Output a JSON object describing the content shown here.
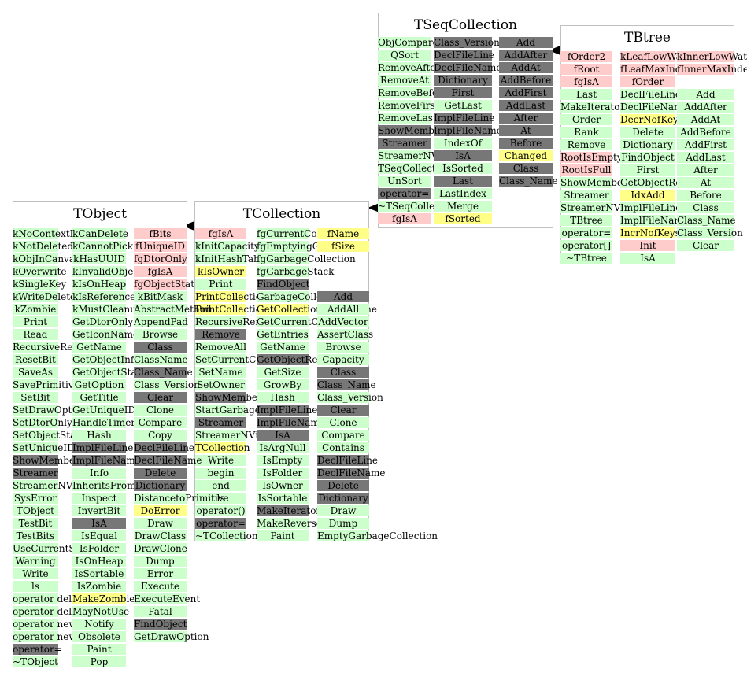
{
  "classes": [
    {
      "id": "tseqcollection",
      "name": "TSeqCollection",
      "columns": [
        [
          [
            "ObjCompare",
            "g"
          ],
          [
            "QSort",
            "g"
          ],
          [
            "RemoveAfter",
            "g"
          ],
          [
            "RemoveAt",
            "g"
          ],
          [
            "RemoveBefore",
            "g"
          ],
          [
            "RemoveFirst",
            "g"
          ],
          [
            "RemoveLast",
            "g"
          ],
          [
            "ShowMembers",
            "d"
          ],
          [
            "Streamer",
            "d"
          ],
          [
            "StreamerNVirtual",
            "g"
          ],
          [
            "TSeqCollection",
            "g"
          ],
          [
            "UnSort",
            "g"
          ],
          [
            "operator=",
            "d"
          ],
          [
            "~TSeqCollection",
            "g"
          ],
          [
            "fgIsA",
            "p"
          ]
        ],
        [
          [
            "Class_Version",
            "d"
          ],
          [
            "DeclFileLine",
            "d"
          ],
          [
            "DeclFileName",
            "d"
          ],
          [
            "Dictionary",
            "d"
          ],
          [
            "First",
            "d"
          ],
          [
            "GetLast",
            "g"
          ],
          [
            "ImplFileLine",
            "d"
          ],
          [
            "ImplFileName",
            "d"
          ],
          [
            "IndexOf",
            "g"
          ],
          [
            "IsA",
            "d"
          ],
          [
            "IsSorted",
            "g"
          ],
          [
            "Last",
            "d"
          ],
          [
            "LastIndex",
            "g"
          ],
          [
            "Merge",
            "g"
          ],
          [
            "fSorted",
            "y"
          ]
        ],
        [
          [
            "Add",
            "d"
          ],
          [
            "AddAfter",
            "d"
          ],
          [
            "AddAt",
            "d"
          ],
          [
            "AddBefore",
            "d"
          ],
          [
            "AddFirst",
            "d"
          ],
          [
            "AddLast",
            "d"
          ],
          [
            "After",
            "d"
          ],
          [
            "At",
            "d"
          ],
          [
            "Before",
            "d"
          ],
          [
            "Changed",
            "y"
          ],
          [
            "Class",
            "d"
          ],
          [
            "Class_Name",
            "d"
          ]
        ]
      ]
    },
    {
      "id": "tbtree",
      "name": "TBtree",
      "columns": [
        [
          [
            "fOrder2",
            "p"
          ],
          [
            "fRoot",
            "p"
          ],
          [
            "fgIsA",
            "p"
          ],
          [
            "Last",
            "g"
          ],
          [
            "MakeIterator",
            "g"
          ],
          [
            "Order",
            "g"
          ],
          [
            "Rank",
            "g"
          ],
          [
            "Remove",
            "g"
          ],
          [
            "RootIsEmpty",
            "p"
          ],
          [
            "RootIsFull",
            "p"
          ],
          [
            "ShowMembers",
            "g"
          ],
          [
            "Streamer",
            "g"
          ],
          [
            "StreamerNVirtual",
            "g"
          ],
          [
            "TBtree",
            "g"
          ],
          [
            "operator=",
            "g"
          ],
          [
            "operator[]",
            "g"
          ],
          [
            "~TBtree",
            "g"
          ]
        ],
        [
          [
            "kLeafLowWaterMark",
            "p"
          ],
          [
            "fLeafMaxIndex",
            "p"
          ],
          [
            "fOrder",
            "p"
          ],
          [
            "DeclFileLine",
            "g"
          ],
          [
            "DeclFileName",
            "g"
          ],
          [
            "DecrNofKeys",
            "y"
          ],
          [
            "Delete",
            "g"
          ],
          [
            "Dictionary",
            "g"
          ],
          [
            "FindObject",
            "g"
          ],
          [
            "First",
            "g"
          ],
          [
            "GetObjectRef",
            "g"
          ],
          [
            "IdxAdd",
            "y"
          ],
          [
            "ImplFileLine",
            "g"
          ],
          [
            "ImplFileName",
            "g"
          ],
          [
            "IncrNofKeys",
            "y"
          ],
          [
            "Init",
            "p"
          ],
          [
            "IsA",
            "g"
          ]
        ],
        [
          [
            "kInnerLowWaterMark",
            "p"
          ],
          [
            "fInnerMaxIndex",
            "p"
          ],
          [
            "",
            "w"
          ],
          [
            "Add",
            "g"
          ],
          [
            "AddAfter",
            "g"
          ],
          [
            "AddAt",
            "g"
          ],
          [
            "AddBefore",
            "g"
          ],
          [
            "AddFirst",
            "g"
          ],
          [
            "AddLast",
            "g"
          ],
          [
            "After",
            "g"
          ],
          [
            "At",
            "g"
          ],
          [
            "Before",
            "g"
          ],
          [
            "Class",
            "g"
          ],
          [
            "Class_Name",
            "g"
          ],
          [
            "Class_Version",
            "g"
          ],
          [
            "Clear",
            "g"
          ]
        ]
      ]
    },
    {
      "id": "tcollection",
      "name": "TCollection",
      "columns": [
        [
          [
            "fgIsA",
            "p"
          ],
          [
            "kInitCapacity",
            "g"
          ],
          [
            "kInitHashTableCapacity",
            "g"
          ],
          [
            "kIsOwner",
            "y"
          ],
          [
            "Print",
            "g"
          ],
          [
            "PrintCollectionEntry",
            "y"
          ],
          [
            "PrintCollectionHeader",
            "y"
          ],
          [
            "RecursiveRemove",
            "g"
          ],
          [
            "Remove",
            "d"
          ],
          [
            "RemoveAll",
            "g"
          ],
          [
            "SetCurrentCollection",
            "g"
          ],
          [
            "SetName",
            "g"
          ],
          [
            "SetOwner",
            "g"
          ],
          [
            "ShowMembers",
            "d"
          ],
          [
            "StartGarbageCollection",
            "g"
          ],
          [
            "Streamer",
            "d"
          ],
          [
            "StreamerNVirtual",
            "g"
          ],
          [
            "TCollection",
            "y"
          ],
          [
            "Write",
            "g"
          ],
          [
            "begin",
            "g"
          ],
          [
            "end",
            "g"
          ],
          [
            "ls",
            "g"
          ],
          [
            "operator()",
            "g"
          ],
          [
            "operator=",
            "d"
          ],
          [
            "~TCollection",
            "g"
          ]
        ],
        [
          [
            "fgCurrentCollection",
            "g"
          ],
          [
            "fgEmptyingGarbage",
            "g"
          ],
          [
            "fgGarbageCollection",
            "g"
          ],
          [
            "fgGarbageStack",
            "g"
          ],
          [
            "FindObject",
            "d"
          ],
          [
            "GarbageCollect",
            "g"
          ],
          [
            "GetCollectionEntryName",
            "y"
          ],
          [
            "GetCurrentCollection",
            "g"
          ],
          [
            "GetEntries",
            "g"
          ],
          [
            "GetName",
            "g"
          ],
          [
            "GetObjectRef",
            "d"
          ],
          [
            "GetSize",
            "g"
          ],
          [
            "GrowBy",
            "g"
          ],
          [
            "Hash",
            "g"
          ],
          [
            "ImplFileLine",
            "d"
          ],
          [
            "ImplFileName",
            "d"
          ],
          [
            "IsA",
            "d"
          ],
          [
            "IsArgNull",
            "g"
          ],
          [
            "IsEmpty",
            "g"
          ],
          [
            "IsFolder",
            "g"
          ],
          [
            "IsOwner",
            "g"
          ],
          [
            "IsSortable",
            "g"
          ],
          [
            "MakeIterator",
            "d"
          ],
          [
            "MakeReverseIterator",
            "g"
          ],
          [
            "Paint",
            "g"
          ]
        ],
        [
          [
            "fName",
            "y"
          ],
          [
            "fSize",
            "y"
          ],
          [
            "",
            "w"
          ],
          [
            "",
            "w"
          ],
          [
            "",
            "w"
          ],
          [
            "Add",
            "d"
          ],
          [
            "AddAll",
            "g"
          ],
          [
            "AddVector",
            "g"
          ],
          [
            "AssertClass",
            "g"
          ],
          [
            "Browse",
            "g"
          ],
          [
            "Capacity",
            "g"
          ],
          [
            "Class",
            "d"
          ],
          [
            "Class_Name",
            "d"
          ],
          [
            "Class_Version",
            "g"
          ],
          [
            "Clear",
            "d"
          ],
          [
            "Clone",
            "g"
          ],
          [
            "Compare",
            "g"
          ],
          [
            "Contains",
            "g"
          ],
          [
            "DeclFileLine",
            "d"
          ],
          [
            "DeclFileName",
            "d"
          ],
          [
            "Delete",
            "d"
          ],
          [
            "Dictionary",
            "d"
          ],
          [
            "Draw",
            "g"
          ],
          [
            "Dump",
            "g"
          ],
          [
            "EmptyGarbageCollection",
            "g"
          ]
        ]
      ]
    },
    {
      "id": "tobject",
      "name": "TObject",
      "columns": [
        [
          [
            "kNoContextMenu",
            "g"
          ],
          [
            "kNotDeleted",
            "g"
          ],
          [
            "kObjInCanvas",
            "g"
          ],
          [
            "kOverwrite",
            "g"
          ],
          [
            "kSingleKey",
            "g"
          ],
          [
            "kWriteDelete",
            "g"
          ],
          [
            "kZombie",
            "g"
          ],
          [
            "Print",
            "g"
          ],
          [
            "Read",
            "g"
          ],
          [
            "RecursiveRemove",
            "g"
          ],
          [
            "ResetBit",
            "g"
          ],
          [
            "SaveAs",
            "g"
          ],
          [
            "SavePrimitive",
            "g"
          ],
          [
            "SetBit",
            "g"
          ],
          [
            "SetDrawOption",
            "g"
          ],
          [
            "SetDtorOnly",
            "g"
          ],
          [
            "SetObjectStat",
            "g"
          ],
          [
            "SetUniqueID",
            "g"
          ],
          [
            "ShowMembers",
            "d"
          ],
          [
            "Streamer",
            "d"
          ],
          [
            "StreamerNVirtual",
            "g"
          ],
          [
            "SysError",
            "g"
          ],
          [
            "TObject",
            "g"
          ],
          [
            "TestBit",
            "g"
          ],
          [
            "TestBits",
            "g"
          ],
          [
            "UseCurrentStyle",
            "g"
          ],
          [
            "Warning",
            "g"
          ],
          [
            "Write",
            "g"
          ],
          [
            "ls",
            "g"
          ],
          [
            "operator delete",
            "g"
          ],
          [
            "operator delete[]",
            "g"
          ],
          [
            "operator new",
            "g"
          ],
          [
            "operator new[]",
            "g"
          ],
          [
            "operator=",
            "d"
          ],
          [
            "~TObject",
            "g"
          ]
        ],
        [
          [
            "kCanDelete",
            "g"
          ],
          [
            "kCannotPick",
            "g"
          ],
          [
            "kHasUUID",
            "g"
          ],
          [
            "kInvalidObject",
            "g"
          ],
          [
            "kIsOnHeap",
            "g"
          ],
          [
            "kIsReferenced",
            "g"
          ],
          [
            "kMustCleanup",
            "g"
          ],
          [
            "GetDtorOnly",
            "g"
          ],
          [
            "GetIconName",
            "g"
          ],
          [
            "GetName",
            "g"
          ],
          [
            "GetObjectInfo",
            "g"
          ],
          [
            "GetObjectStat",
            "g"
          ],
          [
            "GetOption",
            "g"
          ],
          [
            "GetTitle",
            "g"
          ],
          [
            "GetUniqueID",
            "g"
          ],
          [
            "HandleTimer",
            "g"
          ],
          [
            "Hash",
            "g"
          ],
          [
            "ImplFileLine",
            "d"
          ],
          [
            "ImplFileName",
            "d"
          ],
          [
            "Info",
            "g"
          ],
          [
            "InheritsFrom",
            "g"
          ],
          [
            "Inspect",
            "g"
          ],
          [
            "InvertBit",
            "g"
          ],
          [
            "IsA",
            "d"
          ],
          [
            "IsEqual",
            "g"
          ],
          [
            "IsFolder",
            "g"
          ],
          [
            "IsOnHeap",
            "g"
          ],
          [
            "IsSortable",
            "g"
          ],
          [
            "IsZombie",
            "g"
          ],
          [
            "MakeZombie",
            "y"
          ],
          [
            "MayNotUse",
            "g"
          ],
          [
            "Notify",
            "g"
          ],
          [
            "Obsolete",
            "g"
          ],
          [
            "Paint",
            "g"
          ],
          [
            "Pop",
            "g"
          ]
        ],
        [
          [
            "fBits",
            "p"
          ],
          [
            "fUniqueID",
            "p"
          ],
          [
            "fgDtorOnly",
            "p"
          ],
          [
            "fgIsA",
            "p"
          ],
          [
            "fgObjectStat",
            "p"
          ],
          [
            "kBitMask",
            "g"
          ],
          [
            "AbstractMethod",
            "g"
          ],
          [
            "AppendPad",
            "g"
          ],
          [
            "Browse",
            "g"
          ],
          [
            "Class",
            "d"
          ],
          [
            "ClassName",
            "g"
          ],
          [
            "Class_Name",
            "d"
          ],
          [
            "Class_Version",
            "g"
          ],
          [
            "Clear",
            "d"
          ],
          [
            "Clone",
            "g"
          ],
          [
            "Compare",
            "g"
          ],
          [
            "Copy",
            "g"
          ],
          [
            "DeclFileLine",
            "d"
          ],
          [
            "DeclFileName",
            "d"
          ],
          [
            "Delete",
            "d"
          ],
          [
            "Dictionary",
            "d"
          ],
          [
            "DistancetoPrimitive",
            "g"
          ],
          [
            "DoError",
            "y"
          ],
          [
            "Draw",
            "g"
          ],
          [
            "DrawClass",
            "g"
          ],
          [
            "DrawClone",
            "g"
          ],
          [
            "Dump",
            "g"
          ],
          [
            "Error",
            "g"
          ],
          [
            "Execute",
            "g"
          ],
          [
            "ExecuteEvent",
            "g"
          ],
          [
            "Fatal",
            "g"
          ],
          [
            "FindObject",
            "d"
          ],
          [
            "GetDrawOption",
            "g"
          ]
        ]
      ]
    }
  ]
}
